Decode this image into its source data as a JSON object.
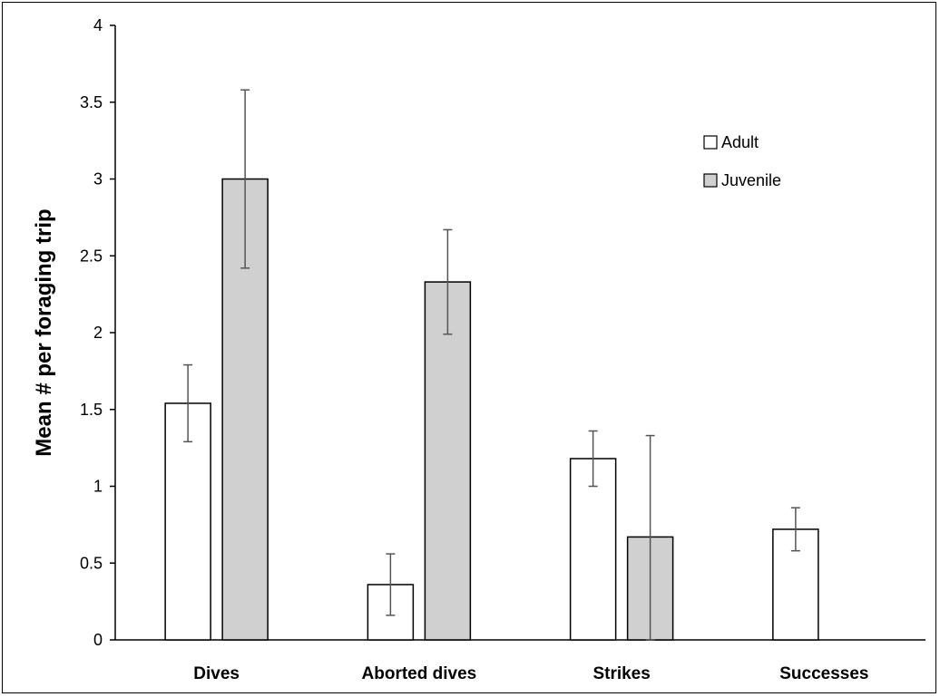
{
  "chart_data": {
    "type": "bar",
    "categories": [
      "Dives",
      "Aborted dives",
      "Strikes",
      "Successes"
    ],
    "series": [
      {
        "name": "Adult",
        "color": "#ffffff",
        "values": [
          1.54,
          0.36,
          1.18,
          0.72
        ],
        "error_low": [
          1.29,
          0.16,
          1.0,
          0.58
        ],
        "error_high": [
          1.79,
          0.56,
          1.36,
          0.86
        ]
      },
      {
        "name": "Juvenile",
        "color": "#d0d0d0",
        "values": [
          3.0,
          2.33,
          0.67,
          null
        ],
        "error_low": [
          2.42,
          1.99,
          0.0,
          null
        ],
        "error_high": [
          3.58,
          2.67,
          1.33,
          null
        ]
      }
    ],
    "ylabel": "Mean # per foraging trip",
    "xlabel": "",
    "ylim": [
      0,
      4
    ],
    "yticks": [
      "0",
      "0.5",
      "1",
      "1.5",
      "2",
      "2.5",
      "3",
      "3.5",
      "4"
    ],
    "grid": false,
    "legend_position": "top-right"
  }
}
